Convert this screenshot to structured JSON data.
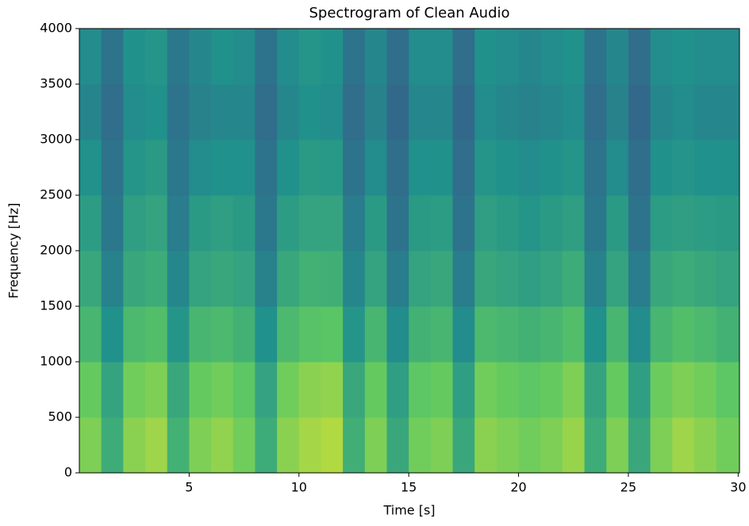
{
  "chart_data": {
    "type": "spectrogram",
    "title": "Spectrogram of Clean Audio",
    "x_label": "Time [s]",
    "y_label": "Frequency [Hz]",
    "xlim": [
      0,
      30.06
    ],
    "ylim": [
      0,
      4000
    ],
    "xticks": [
      5,
      10,
      15,
      20,
      25,
      30
    ],
    "yticks": [
      0,
      500,
      1000,
      1500,
      2000,
      2500,
      3000,
      3500,
      4000
    ],
    "colormap": "viridis",
    "clim": [
      0,
      1
    ],
    "x": [
      0.5,
      1.5,
      2.5,
      3.5,
      4.5,
      5.5,
      6.5,
      7.5,
      8.5,
      9.5,
      10.5,
      11.5,
      12.5,
      13.5,
      14.5,
      15.5,
      16.5,
      17.5,
      18.5,
      19.5,
      20.5,
      21.5,
      22.5,
      23.5,
      24.5,
      25.5,
      26.5,
      27.5,
      28.5,
      29.5
    ],
    "y": [
      250,
      750,
      1250,
      1750,
      2250,
      2750,
      3250,
      3750
    ],
    "values": [
      [
        0.8,
        0.62,
        0.82,
        0.85,
        0.64,
        0.8,
        0.83,
        0.78,
        0.62,
        0.82,
        0.86,
        0.88,
        0.63,
        0.8,
        0.6,
        0.78,
        0.8,
        0.6,
        0.82,
        0.8,
        0.78,
        0.8,
        0.84,
        0.62,
        0.8,
        0.6,
        0.8,
        0.85,
        0.82,
        0.78
      ],
      [
        0.76,
        0.58,
        0.78,
        0.8,
        0.6,
        0.76,
        0.78,
        0.74,
        0.58,
        0.78,
        0.82,
        0.83,
        0.6,
        0.76,
        0.56,
        0.74,
        0.76,
        0.56,
        0.78,
        0.76,
        0.74,
        0.76,
        0.8,
        0.58,
        0.76,
        0.56,
        0.77,
        0.8,
        0.78,
        0.74
      ],
      [
        0.66,
        0.5,
        0.68,
        0.7,
        0.52,
        0.66,
        0.68,
        0.64,
        0.5,
        0.68,
        0.72,
        0.73,
        0.52,
        0.66,
        0.48,
        0.64,
        0.66,
        0.48,
        0.68,
        0.66,
        0.64,
        0.66,
        0.7,
        0.5,
        0.66,
        0.48,
        0.66,
        0.7,
        0.68,
        0.64
      ],
      [
        0.6,
        0.44,
        0.6,
        0.62,
        0.46,
        0.58,
        0.6,
        0.58,
        0.44,
        0.6,
        0.64,
        0.63,
        0.46,
        0.58,
        0.42,
        0.58,
        0.6,
        0.42,
        0.6,
        0.58,
        0.56,
        0.58,
        0.62,
        0.44,
        0.58,
        0.42,
        0.6,
        0.62,
        0.6,
        0.58
      ],
      [
        0.55,
        0.4,
        0.56,
        0.58,
        0.42,
        0.54,
        0.56,
        0.54,
        0.4,
        0.55,
        0.58,
        0.58,
        0.42,
        0.54,
        0.38,
        0.54,
        0.55,
        0.38,
        0.56,
        0.54,
        0.52,
        0.54,
        0.56,
        0.4,
        0.54,
        0.38,
        0.55,
        0.56,
        0.55,
        0.54
      ],
      [
        0.5,
        0.38,
        0.52,
        0.54,
        0.4,
        0.48,
        0.5,
        0.5,
        0.38,
        0.5,
        0.54,
        0.53,
        0.38,
        0.48,
        0.36,
        0.5,
        0.5,
        0.36,
        0.52,
        0.5,
        0.48,
        0.5,
        0.52,
        0.38,
        0.48,
        0.36,
        0.5,
        0.52,
        0.5,
        0.5
      ],
      [
        0.45,
        0.36,
        0.48,
        0.5,
        0.38,
        0.44,
        0.46,
        0.46,
        0.36,
        0.46,
        0.5,
        0.48,
        0.36,
        0.44,
        0.34,
        0.46,
        0.46,
        0.34,
        0.48,
        0.46,
        0.44,
        0.46,
        0.48,
        0.36,
        0.44,
        0.34,
        0.46,
        0.48,
        0.46,
        0.46
      ],
      [
        0.48,
        0.38,
        0.5,
        0.52,
        0.4,
        0.46,
        0.5,
        0.48,
        0.38,
        0.48,
        0.52,
        0.5,
        0.38,
        0.46,
        0.36,
        0.48,
        0.48,
        0.36,
        0.5,
        0.48,
        0.46,
        0.48,
        0.5,
        0.38,
        0.46,
        0.36,
        0.48,
        0.5,
        0.48,
        0.48
      ]
    ]
  }
}
